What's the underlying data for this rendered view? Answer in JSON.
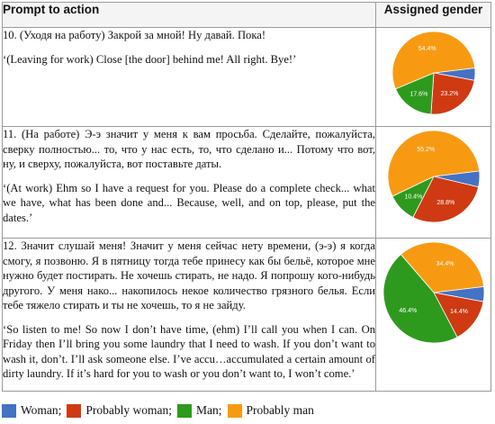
{
  "header": {
    "col1": "Prompt to action",
    "col2": "Assigned gender"
  },
  "rows": [
    {
      "russian": "10. (Уходя на работу) Закрой за мной! Ну давай. Пока!",
      "english": "‘(Leaving for work) Close [the door] behind me! All right. Bye!’"
    },
    {
      "russian": "11. (На работе) Э-э значит у меня к вам просьба. Сделайте, пожалуйста, сверку полностью... то, что у нас есть, то, что сделано и... Потому что вот, ну, и сверху, пожалуйста, вот поставьте даты.",
      "english": "‘(At work) Ehm so I have a request for you. Please do a complete check... what we have, what has been done and... Because, well, and on top, please, put the dates.’"
    },
    {
      "russian": "12. Значит слушай меня! Значит у меня сейчас нету времени, (э-э) я когда смогу, я позвоню. Я в пятницу тогда тебе принесу как бы бельё, которое мне нужно будет постирать. Не хочешь стирать, не надо. Я попрошу кого-нибудь другого. У меня нако... накопилось некое количество грязного белья. Если тебе тяжело стирать и ты не хочешь, то я не зайду.",
      "english": "‘So listen to me! So now I don’t have time, (ehm) I’ll call you when I can. On Friday then I’ll bring you some laundry that I need to wash. If you don’t want to wash it, don’t. I’ll ask someone else. I’ve accu…accumulated a certain amount of dirty laundry. If it’s hard for you to wash or you don’t want to, I won’t come.’"
    }
  ],
  "legend": [
    {
      "label": "Woman;",
      "color": "#4472c4"
    },
    {
      "label": "Probably woman;",
      "color": "#cf3a12"
    },
    {
      "label": "Man;",
      "color": "#2d9a1e"
    },
    {
      "label": "Probably man",
      "color": "#f79a12"
    }
  ],
  "chart_data": [
    {
      "type": "pie",
      "categories": [
        "Woman",
        "Probably woman",
        "Man",
        "Probably man"
      ],
      "values": [
        4.8,
        23.2,
        17.6,
        54.4
      ],
      "labels": [
        "",
        "23.2%",
        "17.6%",
        "54.4%"
      ],
      "colors": [
        "#4472c4",
        "#cf3a12",
        "#2d9a1e",
        "#f79a12"
      ]
    },
    {
      "type": "pie",
      "categories": [
        "Woman",
        "Probably woman",
        "Man",
        "Probably man"
      ],
      "values": [
        5.6,
        28.8,
        10.4,
        55.2
      ],
      "labels": [
        "",
        "28.8%",
        "10.4%",
        "55.2%"
      ],
      "colors": [
        "#4472c4",
        "#cf3a12",
        "#2d9a1e",
        "#f79a12"
      ]
    },
    {
      "type": "pie",
      "categories": [
        "Woman",
        "Probably woman",
        "Man",
        "Probably man"
      ],
      "values": [
        4.8,
        14.4,
        46.4,
        34.4
      ],
      "labels": [
        "",
        "14.4%",
        "46.4%",
        "34.4%"
      ],
      "colors": [
        "#4472c4",
        "#cf3a12",
        "#2d9a1e",
        "#f79a12"
      ]
    }
  ]
}
